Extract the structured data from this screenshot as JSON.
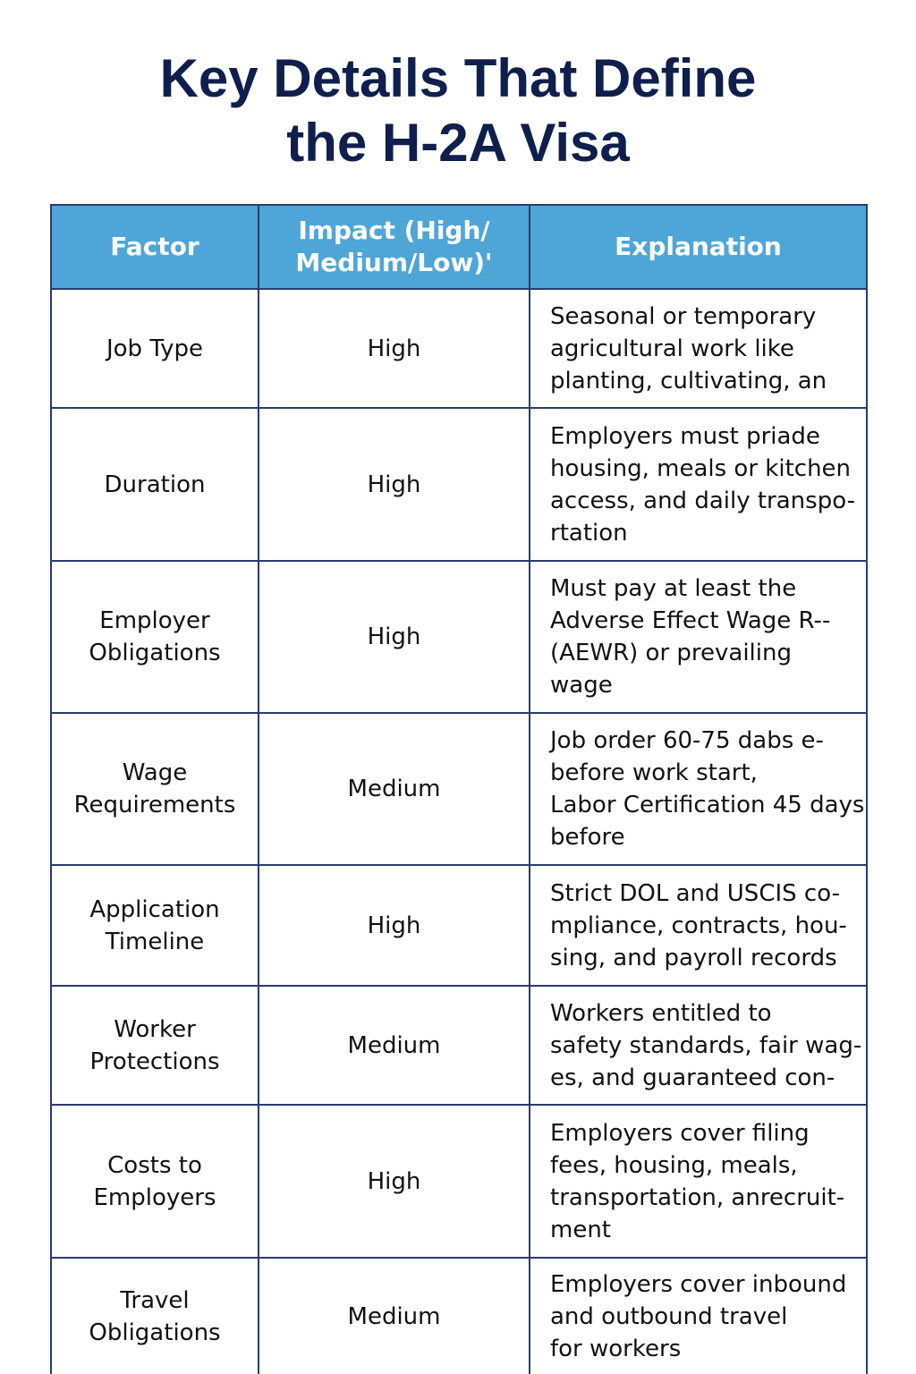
{
  "header": {
    "title": [
      "Key Details That Define",
      "the H-2A Visa"
    ]
  },
  "table": {
    "columns": [
      [
        "Factor"
      ],
      [
        "Impact (High/",
        "Medium/Low)'"
      ],
      [
        "Explanation"
      ]
    ],
    "rows": [
      {
        "factor": [
          "Job Type"
        ],
        "impact": "High",
        "explanation": [
          "Seasonal or temporary",
          "agricultural work like",
          "planting, cultivating, an"
        ]
      },
      {
        "factor": [
          "Duration"
        ],
        "impact": "High",
        "explanation": [
          "Employers must priade",
          "housing, meals or kitchen",
          "access, and daily transpo-",
          "rtation"
        ]
      },
      {
        "factor": [
          "Employer",
          "Obligations"
        ],
        "impact": "High",
        "explanation": [
          "Must pay at least the",
          "Adverse Effect Wage R--",
          "(AEWR) or prevailing",
          "wage"
        ]
      },
      {
        "factor": [
          "Wage",
          "Requirements"
        ],
        "impact": "Medium",
        "explanation": [
          "Job order 60-75 dabs e-",
          "before work start,",
          "Labor Certification 45 days",
          "before"
        ]
      },
      {
        "factor": [
          "Application",
          "Timeline"
        ],
        "impact": "High",
        "explanation": [
          "Strict DOL and USCIS  co-",
          "mpliance, contracts, hou-",
          "sing, and payroll records"
        ]
      },
      {
        "factor": [
          "Worker",
          "Protections"
        ],
        "impact": "Medium",
        "explanation": [
          "Workers entitled to",
          "safety standards, fair wag-",
          "es, and guaranteed con-"
        ]
      },
      {
        "factor": [
          "Costs to",
          "Employers"
        ],
        "impact": "High",
        "explanation": [
          "Employers cover filing",
          "fees, housing, meals,",
          "transportation, anrecruit-",
          "ment"
        ]
      },
      {
        "factor": [
          "Travel",
          "Obligations"
        ],
        "impact": "Medium",
        "explanation": [
          "Employers cover inbound",
          "and outbound travel",
          "for workers"
        ]
      }
    ]
  }
}
